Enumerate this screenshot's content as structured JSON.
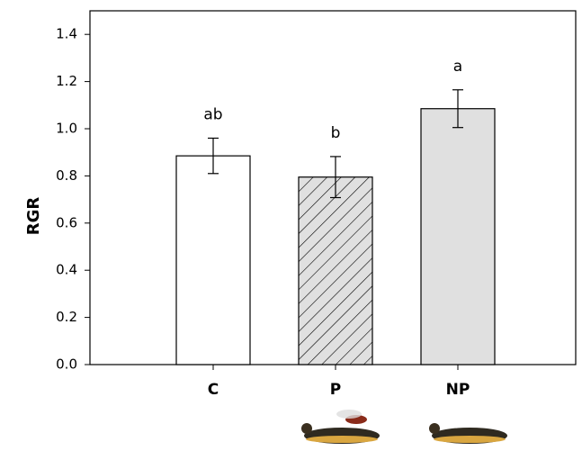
{
  "chart_data": {
    "type": "bar",
    "y_label": "RGR",
    "categories": [
      "C",
      "P",
      "NP"
    ],
    "values": [
      0.885,
      0.795,
      1.085
    ],
    "errors": [
      0.075,
      0.087,
      0.08
    ],
    "letters": [
      "ab",
      "b",
      "a"
    ],
    "colors": [
      "#ffffff",
      "#e0e0e0",
      "#e0e0e0"
    ],
    "hatch": [
      false,
      true,
      false
    ],
    "ylim": [
      0,
      1.5
    ],
    "yticks": [
      {
        "value": 0,
        "label": "0.0"
      },
      {
        "value": 0.2,
        "label": "0.2"
      },
      {
        "value": 0.4,
        "label": "0.4"
      },
      {
        "value": 0.6,
        "label": "0.6"
      },
      {
        "value": 0.8,
        "label": "0.8"
      },
      {
        "value": 1,
        "label": "1.0"
      },
      {
        "value": 1.2,
        "label": "1.2"
      },
      {
        "value": 1.4,
        "label": "1.4"
      }
    ]
  }
}
